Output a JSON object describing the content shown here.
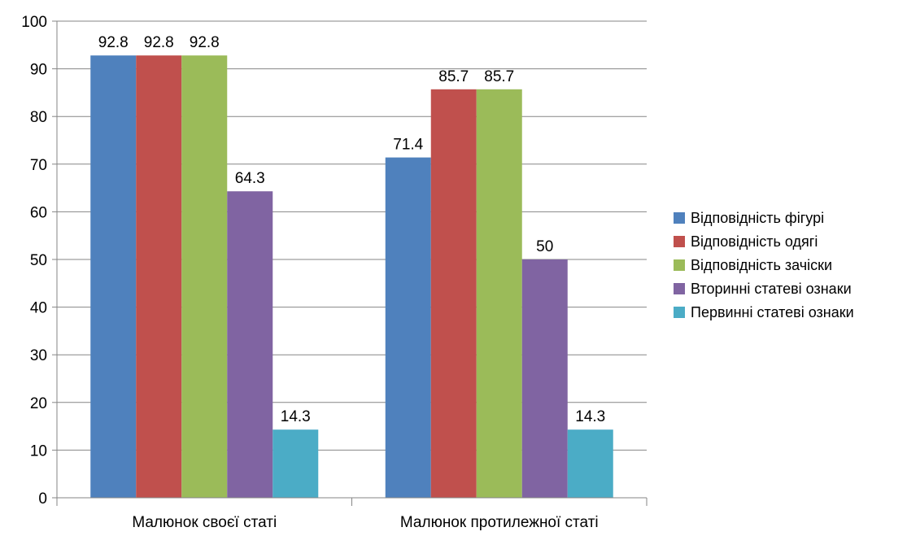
{
  "chart_data": {
    "type": "bar",
    "title": "",
    "xlabel": "",
    "ylabel": "",
    "ylim": [
      0,
      100
    ],
    "yticks": [
      0,
      10,
      20,
      30,
      40,
      50,
      60,
      70,
      80,
      90,
      100
    ],
    "grid": true,
    "legend_position": "right",
    "categories": [
      "Малюнок своєї статі",
      "Малюнок протилежної статі"
    ],
    "series": [
      {
        "name": "Відповідність фігурі",
        "color": "#4F81BD",
        "values": [
          92.8,
          71.4
        ]
      },
      {
        "name": "Відповідність одягі",
        "color": "#C0504D",
        "values": [
          92.8,
          85.7
        ]
      },
      {
        "name": "Відповідність зачіски",
        "color": "#9BBB59",
        "values": [
          92.8,
          85.7
        ]
      },
      {
        "name": "Вторинні статеві ознаки",
        "color": "#8064A2",
        "values": [
          64.3,
          50
        ]
      },
      {
        "name": "Первинні статеві ознаки",
        "color": "#4BACC6",
        "values": [
          14.3,
          14.3
        ]
      }
    ]
  }
}
